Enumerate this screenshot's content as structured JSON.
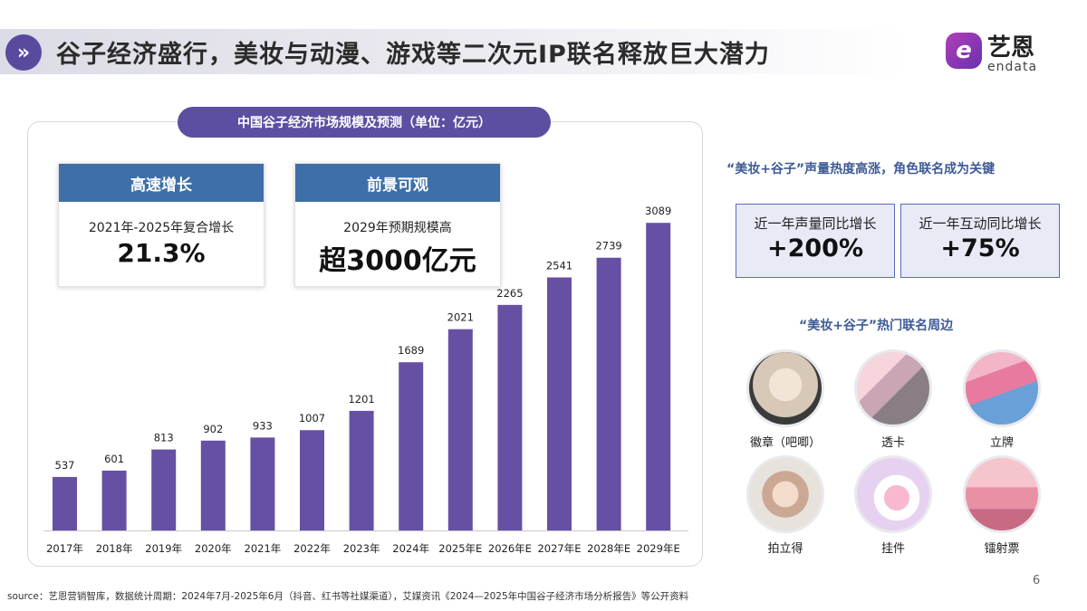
{
  "header": {
    "title": "谷子经济盛行，美妆与动漫、游戏等二次元IP联名释放巨大潜力",
    "arrow_glyph": "»",
    "logo_mark": "e",
    "logo_cn": "艺恩",
    "logo_en": "endata"
  },
  "chart_data": {
    "type": "bar",
    "title": "中国谷子经济市场规模及预测（单位：亿元）",
    "categories": [
      "2017年",
      "2018年",
      "2019年",
      "2020年",
      "2021年",
      "2022年",
      "2023年",
      "2024年",
      "2025年E",
      "2026年E",
      "2027年E",
      "2028年E",
      "2029年E"
    ],
    "values": [
      537,
      601,
      813,
      902,
      933,
      1007,
      1201,
      1689,
      2021,
      2265,
      2541,
      2739,
      3089
    ],
    "ylim": [
      0,
      3200
    ],
    "color": "#6650a4",
    "xlabel": "",
    "ylabel": "",
    "grid": false
  },
  "highlights": [
    {
      "head": "高速增长",
      "sub": "2021年-2025年复合增长",
      "value": "21.3%"
    },
    {
      "head": "前景可观",
      "sub": "2029年预期规模高",
      "value": "超3000亿元"
    }
  ],
  "right": {
    "heading1": "“美妆+谷子”声量热度高涨，角色联名成为关键",
    "stats": [
      {
        "label": "近一年声量同比增长",
        "value": "+200%"
      },
      {
        "label": "近一年互动同比增长",
        "value": "+75%"
      }
    ],
    "heading2": "“美妆+谷子”热门联名周边",
    "products": [
      {
        "label": "徽章（吧唧）",
        "icon": "badge-image"
      },
      {
        "label": "透卡",
        "icon": "transparent-card-image"
      },
      {
        "label": "立牌",
        "icon": "standee-image"
      },
      {
        "label": "拍立得",
        "icon": "polaroid-image"
      },
      {
        "label": "挂件",
        "icon": "pendant-image"
      },
      {
        "label": "镭射票",
        "icon": "laser-ticket-image"
      }
    ]
  },
  "footer": {
    "source": "source：艺恩营销智库，数据统计周期：2024年7月-2025年6月（抖音、红书等社媒渠道），艾媒资讯《2024—2025年中国谷子经济市场分析报告》等公开资料",
    "page": "6"
  }
}
